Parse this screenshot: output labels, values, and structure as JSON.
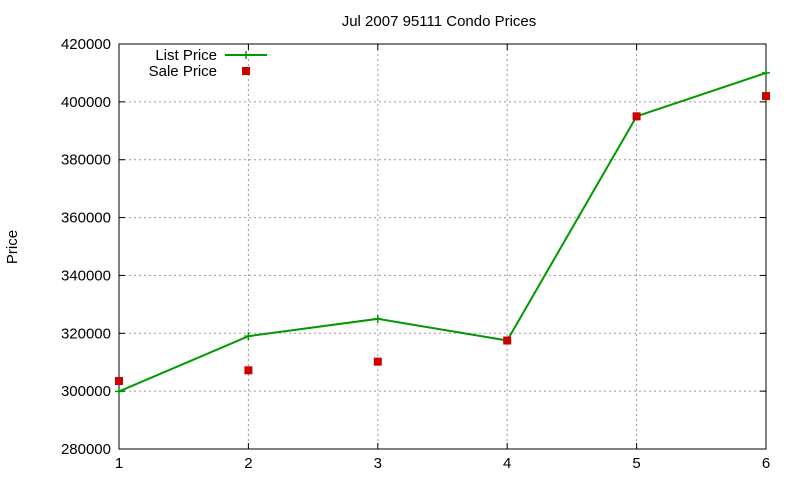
{
  "chart_data": {
    "type": "line",
    "title": "Jul 2007 95111 Condo Prices",
    "xlabel": "",
    "ylabel": "Price",
    "xlim": [
      1,
      6
    ],
    "ylim": [
      280000,
      420000
    ],
    "x_ticks": [
      "1",
      "2",
      "3",
      "4",
      "5",
      "6"
    ],
    "y_ticks": [
      "280000",
      "300000",
      "320000",
      "340000",
      "360000",
      "380000",
      "400000",
      "420000"
    ],
    "grid": true,
    "legend_position": "top-left",
    "series": [
      {
        "name": "List Price",
        "style": "line-with-plus-markers",
        "color": "#009900",
        "x": [
          1,
          2,
          3,
          4,
          5,
          6
        ],
        "values": [
          299900,
          319000,
          325000,
          317500,
          395000,
          410000
        ]
      },
      {
        "name": "Sale Price",
        "style": "square-markers",
        "color": "#cc0000",
        "x": [
          1,
          2,
          3,
          4,
          5,
          6
        ],
        "values": [
          303500,
          307200,
          310200,
          317500,
          395000,
          402000
        ]
      }
    ]
  }
}
